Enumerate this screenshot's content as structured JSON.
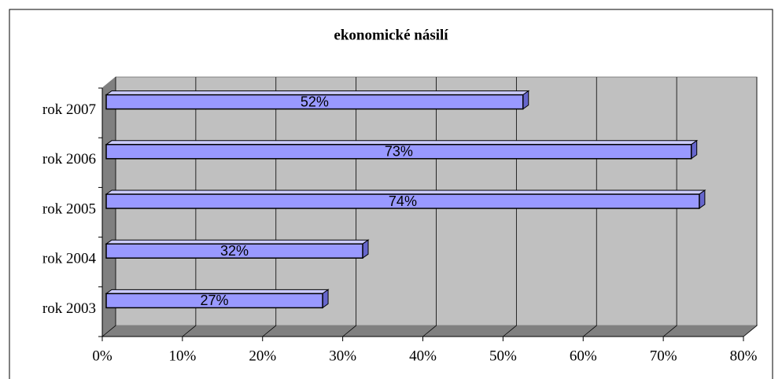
{
  "chart_data": {
    "type": "bar3d",
    "orientation": "horizontal",
    "title": "ekonomické násilí",
    "categories": [
      "rok 2003",
      "rok 2004",
      "rok 2005",
      "rok 2006",
      "rok 2007"
    ],
    "values": [
      27,
      32,
      74,
      73,
      52
    ],
    "value_labels": [
      "27%",
      "32%",
      "74%",
      "73%",
      "52%"
    ],
    "color": "#9999ff",
    "xlim": [
      0,
      80
    ],
    "xticks": [
      {
        "value": 0,
        "label": "0%"
      },
      {
        "value": 10,
        "label": "10%"
      },
      {
        "value": 20,
        "label": "20%"
      },
      {
        "value": 30,
        "label": "30%"
      },
      {
        "value": 40,
        "label": "40%"
      },
      {
        "value": 50,
        "label": "50%"
      },
      {
        "value": 60,
        "label": "60%"
      },
      {
        "value": 70,
        "label": "70%"
      },
      {
        "value": 80,
        "label": "80%"
      }
    ],
    "grid": true
  }
}
